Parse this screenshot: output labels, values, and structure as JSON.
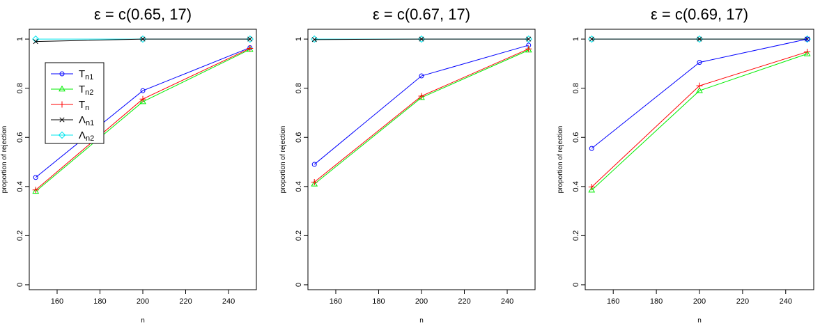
{
  "chart_data": [
    {
      "type": "line",
      "title": "ε = c(0.65, 17)",
      "xlabel": "n",
      "ylabel": "proportion of rejection",
      "xlim": [
        147,
        253
      ],
      "ylim": [
        -0.02,
        1.04
      ],
      "xticks": [
        160,
        180,
        200,
        220,
        240
      ],
      "yticks": [
        0.0,
        0.2,
        0.4,
        0.6,
        0.8,
        1.0
      ],
      "x": [
        150,
        200,
        250
      ],
      "grid": false,
      "legend_position": "top-left",
      "series": [
        {
          "name": "T",
          "sub": "n1",
          "color": "#0000ff",
          "marker": "circle",
          "values": [
            0.437,
            0.79,
            0.965
          ]
        },
        {
          "name": "T",
          "sub": "n2",
          "color": "#00ee00",
          "marker": "triangle",
          "values": [
            0.38,
            0.745,
            0.958
          ]
        },
        {
          "name": "T",
          "sub": "n",
          "color": "#ff0000",
          "marker": "plus",
          "values": [
            0.386,
            0.756,
            0.962
          ]
        },
        {
          "name": "Λ",
          "sub": "n1",
          "color": "#000000",
          "marker": "cross",
          "values": [
            0.99,
            1.0,
            1.0
          ]
        },
        {
          "name": "Λ",
          "sub": "n2",
          "color": "#00e5ee",
          "marker": "diamond",
          "values": [
            1.0,
            1.0,
            1.0
          ]
        }
      ]
    },
    {
      "type": "line",
      "title": "ε = c(0.67, 17)",
      "xlabel": "n",
      "ylabel": "proportion of rejection",
      "xlim": [
        147,
        253
      ],
      "ylim": [
        -0.02,
        1.04
      ],
      "xticks": [
        160,
        180,
        200,
        220,
        240
      ],
      "yticks": [
        0.0,
        0.2,
        0.4,
        0.6,
        0.8,
        1.0
      ],
      "x": [
        150,
        200,
        250
      ],
      "grid": false,
      "series": [
        {
          "name": "T",
          "sub": "n1",
          "color": "#0000ff",
          "marker": "circle",
          "values": [
            0.49,
            0.85,
            0.975
          ]
        },
        {
          "name": "T",
          "sub": "n2",
          "color": "#00ee00",
          "marker": "triangle",
          "values": [
            0.41,
            0.762,
            0.955
          ]
        },
        {
          "name": "T",
          "sub": "n",
          "color": "#ff0000",
          "marker": "plus",
          "values": [
            0.418,
            0.768,
            0.96
          ]
        },
        {
          "name": "Λ",
          "sub": "n1",
          "color": "#000000",
          "marker": "cross",
          "values": [
            0.998,
            1.0,
            1.0
          ]
        },
        {
          "name": "Λ",
          "sub": "n2",
          "color": "#00e5ee",
          "marker": "diamond",
          "values": [
            1.0,
            1.0,
            1.0
          ]
        }
      ]
    },
    {
      "type": "line",
      "title": "ε = c(0.69, 17)",
      "xlabel": "n",
      "ylabel": "proportion of rejection",
      "xlim": [
        147,
        253
      ],
      "ylim": [
        -0.02,
        1.04
      ],
      "xticks": [
        160,
        180,
        200,
        220,
        240
      ],
      "yticks": [
        0.0,
        0.2,
        0.4,
        0.6,
        0.8,
        1.0
      ],
      "x": [
        150,
        200,
        250
      ],
      "grid": false,
      "series": [
        {
          "name": "T",
          "sub": "n1",
          "color": "#0000ff",
          "marker": "circle",
          "values": [
            0.555,
            0.905,
            1.0
          ]
        },
        {
          "name": "T",
          "sub": "n2",
          "color": "#00ee00",
          "marker": "triangle",
          "values": [
            0.385,
            0.79,
            0.94
          ]
        },
        {
          "name": "T",
          "sub": "n",
          "color": "#ff0000",
          "marker": "plus",
          "values": [
            0.398,
            0.81,
            0.948
          ]
        },
        {
          "name": "Λ",
          "sub": "n1",
          "color": "#000000",
          "marker": "cross",
          "values": [
            1.0,
            1.0,
            1.0
          ]
        },
        {
          "name": "Λ",
          "sub": "n2",
          "color": "#00e5ee",
          "marker": "diamond",
          "values": [
            1.0,
            1.0,
            1.0
          ]
        }
      ]
    }
  ]
}
